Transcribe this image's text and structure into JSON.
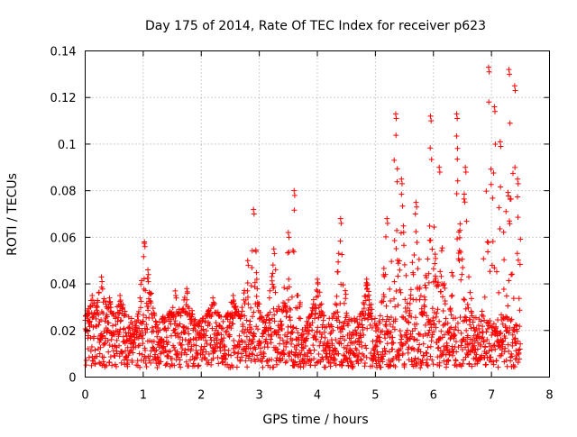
{
  "chart_data": {
    "type": "scatter",
    "title": "Day 175 of 2014, Rate Of TEC Index for receiver p623",
    "xlabel": "GPS time / hours",
    "ylabel": "ROTI / TECUs",
    "xlim": [
      0,
      8
    ],
    "ylim": [
      0,
      0.14
    ],
    "grid": true,
    "marker": "+",
    "color": "#ff0000",
    "x_ticks": [
      "0",
      "1",
      "2",
      "3",
      "4",
      "5",
      "6",
      "7",
      "8"
    ],
    "x_tick_values": [
      0,
      1,
      2,
      3,
      4,
      5,
      6,
      7,
      8
    ],
    "y_ticks": [
      "0",
      "0.02",
      "0.04",
      "0.06",
      "0.08",
      "0.1",
      "0.12",
      "0.14"
    ],
    "y_tick_values": [
      0,
      0.02,
      0.04,
      0.06,
      0.08,
      0.1,
      0.12,
      0.14
    ],
    "series": [
      {
        "name": "ROTI",
        "description": "Dense scatter of ROTI samples; baseline 0.005–0.025 TECU across 0–7.5 h with spikes listed as peaks",
        "baseline_min": 0.004,
        "baseline_max": 0.026,
        "x_range": [
          0,
          7.5
        ],
        "peaks": [
          {
            "x": 0.05,
            "y": 0.025
          },
          {
            "x": 0.12,
            "y": 0.035
          },
          {
            "x": 0.28,
            "y": 0.043
          },
          {
            "x": 0.42,
            "y": 0.034
          },
          {
            "x": 0.6,
            "y": 0.035
          },
          {
            "x": 1.02,
            "y": 0.058
          },
          {
            "x": 1.08,
            "y": 0.046
          },
          {
            "x": 1.55,
            "y": 0.037
          },
          {
            "x": 1.75,
            "y": 0.038
          },
          {
            "x": 2.2,
            "y": 0.034
          },
          {
            "x": 2.55,
            "y": 0.035
          },
          {
            "x": 2.8,
            "y": 0.05
          },
          {
            "x": 2.9,
            "y": 0.072
          },
          {
            "x": 3.25,
            "y": 0.055
          },
          {
            "x": 3.5,
            "y": 0.062
          },
          {
            "x": 3.6,
            "y": 0.08
          },
          {
            "x": 4.0,
            "y": 0.042
          },
          {
            "x": 4.4,
            "y": 0.068
          },
          {
            "x": 4.85,
            "y": 0.042
          },
          {
            "x": 5.2,
            "y": 0.068
          },
          {
            "x": 5.35,
            "y": 0.113
          },
          {
            "x": 5.45,
            "y": 0.085
          },
          {
            "x": 5.7,
            "y": 0.075
          },
          {
            "x": 5.95,
            "y": 0.112
          },
          {
            "x": 6.1,
            "y": 0.09
          },
          {
            "x": 6.4,
            "y": 0.113
          },
          {
            "x": 6.55,
            "y": 0.09
          },
          {
            "x": 6.95,
            "y": 0.133
          },
          {
            "x": 7.05,
            "y": 0.116
          },
          {
            "x": 7.15,
            "y": 0.101
          },
          {
            "x": 7.3,
            "y": 0.132
          },
          {
            "x": 7.4,
            "y": 0.125
          },
          {
            "x": 7.45,
            "y": 0.085
          }
        ]
      }
    ]
  }
}
